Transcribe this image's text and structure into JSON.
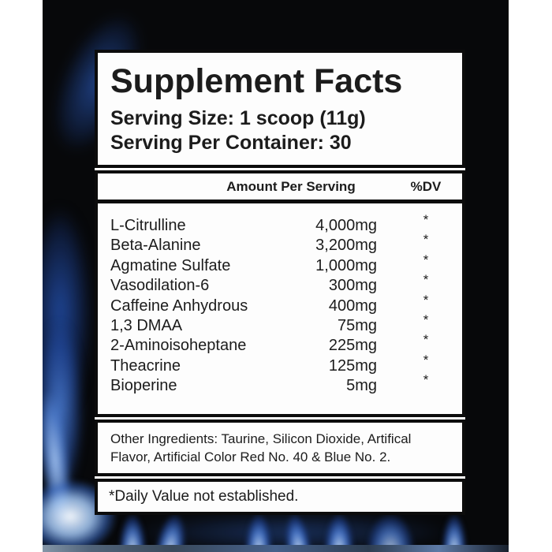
{
  "label": {
    "title": "Supplement Facts",
    "serving_size": "Serving Size: 1 scoop (11g)",
    "servings_per_container": "Serving Per Container: 30",
    "columns": {
      "amount_header": "Amount Per Serving",
      "dv_header": "%DV"
    },
    "ingredients": [
      {
        "name": "L-Citrulline",
        "amount": "4,000mg",
        "dv": "*"
      },
      {
        "name": "Beta-Alanine",
        "amount": "3,200mg",
        "dv": "*"
      },
      {
        "name": "Agmatine Sulfate",
        "amount": "1,000mg",
        "dv": "*"
      },
      {
        "name": "Vasodilation-6",
        "amount": "300mg",
        "dv": "*"
      },
      {
        "name": "Caffeine Anhydrous",
        "amount": "400mg",
        "dv": "*"
      },
      {
        "name": "1,3 DMAA",
        "amount": "75mg",
        "dv": "*"
      },
      {
        "name": "2-Aminoisoheptane",
        "amount": "225mg",
        "dv": "*"
      },
      {
        "name": "Theacrine",
        "amount": "125mg",
        "dv": "*"
      },
      {
        "name": "Bioperine",
        "amount": "5mg",
        "dv": "*"
      }
    ],
    "other_ingredients": "Other Ingredients: Taurine, Silicon Dioxide, Artifical Flavor, Artificial Color Red No. 40 & Blue No. 2.",
    "footnote": "*Daily Value not established."
  },
  "colors": {
    "photo_background": "#07080a",
    "flame_blue_deep": "#2452b2",
    "flame_blue_mid": "#4e82dc",
    "flame_blue_bright": "#a5c6f4",
    "flame_glow_white": "#f4f9ff",
    "label_background": "#fdfdfd",
    "label_border": "#0c0c0c",
    "text": "#1c1c1c"
  }
}
